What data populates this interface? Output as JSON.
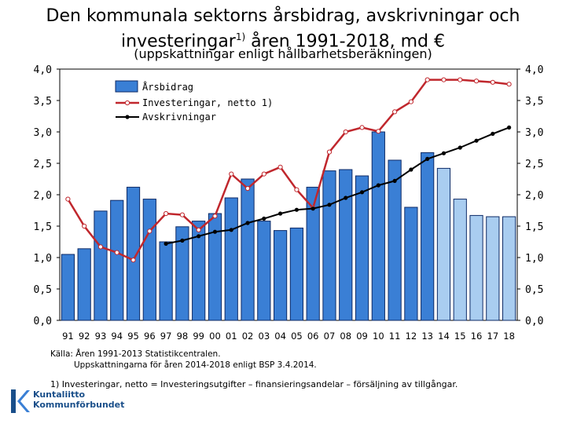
{
  "title_line1": "Den kommunala sektorns årsbidrag, avskrivningar och",
  "title_line2": "investeringar",
  "title_sup": "1)",
  "title_line2_end": " åren 1991-2018, md €",
  "subtitle": "(uppskattningar enligt hållbarhetsberäkningen)",
  "source_line1": "Källa: Åren 1991-2013 Statistikcentralen.",
  "source_line2": "Uppskattningarna för åren 2014-2018 enligt BSP 3.4.2014.",
  "footnote": "1) Investeringar, netto = Investeringsutgifter – finansieringsandelar – försäljning av tillgångar.",
  "logo_line1": "Kuntaliitto",
  "logo_line2": "Kommunförbundet",
  "chart_data": {
    "type": "bar",
    "categories": [
      "91",
      "92",
      "93",
      "94",
      "95",
      "96",
      "97",
      "98",
      "99",
      "00",
      "01",
      "02",
      "03",
      "04",
      "05",
      "06",
      "07",
      "08",
      "09",
      "10",
      "11",
      "12",
      "13",
      "14",
      "15",
      "16",
      "17",
      "18"
    ],
    "ylim": [
      0,
      4
    ],
    "yticks": [
      "0,0",
      "0,5",
      "1,0",
      "1,5",
      "2,0",
      "2,5",
      "3,0",
      "3,5",
      "4,0"
    ],
    "legend_position": "top-left",
    "estimate_from": "14",
    "series": [
      {
        "name": "Årsbidrag",
        "kind": "bar",
        "color": "#3a7fd5",
        "estimate_color": "#a9cdf0",
        "values": [
          1.05,
          1.14,
          1.74,
          1.91,
          2.12,
          1.93,
          1.25,
          1.49,
          1.58,
          1.7,
          1.95,
          2.25,
          1.58,
          1.43,
          1.47,
          2.12,
          2.38,
          2.4,
          2.3,
          3.0,
          2.55,
          1.8,
          2.67,
          2.42,
          1.93,
          1.67,
          1.65,
          1.65
        ]
      },
      {
        "name": "Investeringar, netto 1)",
        "kind": "line",
        "color": "#c0272d",
        "marker": "open-circle",
        "values": [
          1.93,
          1.5,
          1.17,
          1.08,
          0.96,
          1.42,
          1.7,
          1.68,
          1.44,
          1.66,
          2.33,
          2.1,
          2.33,
          2.44,
          2.08,
          1.79,
          2.68,
          3.0,
          3.07,
          3.01,
          3.32,
          3.48,
          3.83,
          3.83,
          3.83,
          3.81,
          3.79,
          3.76
        ]
      },
      {
        "name": "Avskrivningar",
        "kind": "line",
        "color": "#000000",
        "marker": "dot",
        "values": [
          null,
          null,
          null,
          null,
          null,
          null,
          1.22,
          1.27,
          1.34,
          1.41,
          1.44,
          1.55,
          1.62,
          1.7,
          1.76,
          1.78,
          1.84,
          1.95,
          2.04,
          2.15,
          2.22,
          2.4,
          2.57,
          2.66,
          2.75,
          2.86,
          2.97,
          3.07
        ]
      }
    ]
  }
}
